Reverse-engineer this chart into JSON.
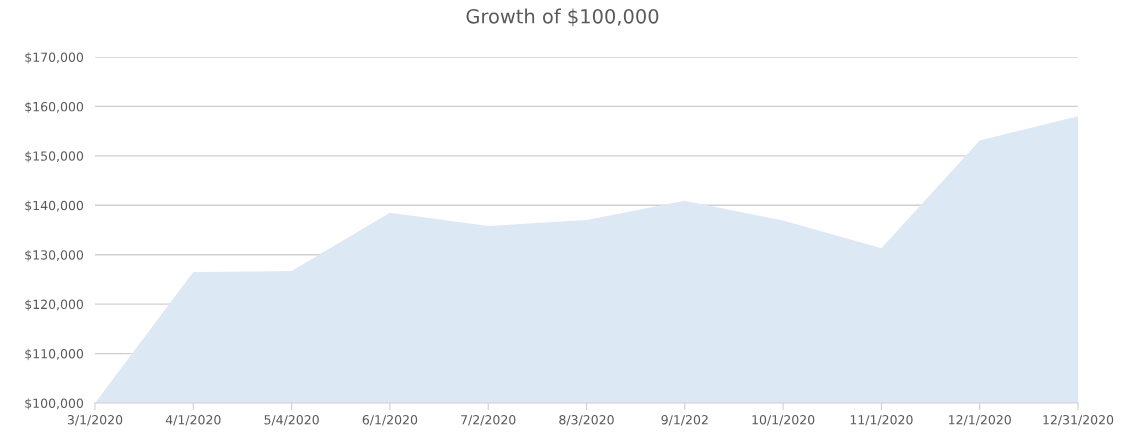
{
  "chart_data": {
    "type": "area",
    "title": "Growth of $100,000",
    "categories": [
      "3/1/2020",
      "4/1/2020",
      "5/4/2020",
      "6/1/2020",
      "7/2/2020",
      "8/3/2020",
      "9/1/202",
      "10/1/2020",
      "11/1/2020",
      "12/1/2020",
      "12/31/2020"
    ],
    "series": [
      {
        "color": "#dde8f5",
        "values": [
          100000,
          126500,
          126700,
          138500,
          135800,
          137000,
          140900,
          136900,
          131300,
          153100,
          158000
        ]
      }
    ],
    "ylim": [
      100000,
      170000
    ],
    "yticks": [
      {
        "value": 100000,
        "label": "$100,000"
      },
      {
        "value": 110000,
        "label": "$110,000"
      },
      {
        "value": 120000,
        "label": "$120,000"
      },
      {
        "value": 130000,
        "label": "$130,000"
      },
      {
        "value": 140000,
        "label": "$140,000"
      },
      {
        "value": 150000,
        "label": "$150,000"
      },
      {
        "value": 160000,
        "label": "$160,000"
      },
      {
        "value": 170000,
        "label": "$170,000"
      }
    ],
    "grid": "y",
    "legend": false
  }
}
